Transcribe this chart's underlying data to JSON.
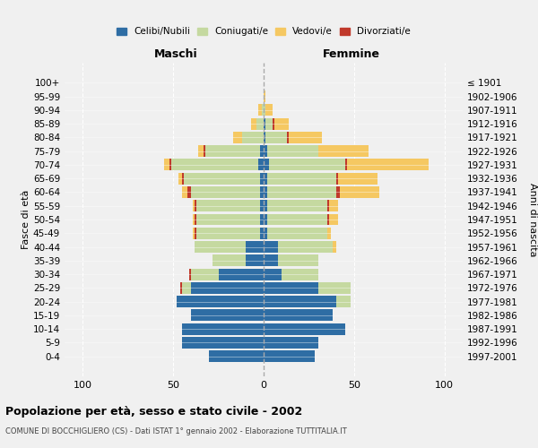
{
  "age_groups": [
    "0-4",
    "5-9",
    "10-14",
    "15-19",
    "20-24",
    "25-29",
    "30-34",
    "35-39",
    "40-44",
    "45-49",
    "50-54",
    "55-59",
    "60-64",
    "65-69",
    "70-74",
    "75-79",
    "80-84",
    "85-89",
    "90-94",
    "95-99",
    "100+"
  ],
  "birth_years": [
    "1997-2001",
    "1992-1996",
    "1987-1991",
    "1982-1986",
    "1977-1981",
    "1972-1976",
    "1967-1971",
    "1962-1966",
    "1957-1961",
    "1952-1956",
    "1947-1951",
    "1942-1946",
    "1937-1941",
    "1932-1936",
    "1927-1931",
    "1922-1926",
    "1917-1921",
    "1912-1916",
    "1907-1911",
    "1902-1906",
    "≤ 1901"
  ],
  "maschi": {
    "celibi": [
      30,
      45,
      45,
      40,
      48,
      40,
      25,
      10,
      10,
      2,
      2,
      2,
      2,
      2,
      3,
      2,
      0,
      0,
      0,
      0,
      0
    ],
    "coniugati": [
      0,
      0,
      0,
      0,
      0,
      5,
      15,
      18,
      28,
      35,
      35,
      35,
      38,
      42,
      48,
      30,
      12,
      4,
      1,
      0,
      0
    ],
    "vedovi": [
      0,
      0,
      0,
      0,
      0,
      0,
      0,
      0,
      0,
      1,
      1,
      1,
      3,
      2,
      3,
      3,
      5,
      3,
      2,
      0,
      0
    ],
    "divorziati": [
      0,
      0,
      0,
      0,
      0,
      1,
      1,
      0,
      0,
      1,
      1,
      1,
      2,
      1,
      1,
      1,
      0,
      0,
      0,
      0,
      0
    ]
  },
  "femmine": {
    "nubili": [
      28,
      30,
      45,
      38,
      40,
      30,
      10,
      8,
      8,
      2,
      2,
      2,
      2,
      2,
      3,
      2,
      1,
      1,
      0,
      0,
      0
    ],
    "coniugate": [
      0,
      0,
      0,
      0,
      8,
      18,
      20,
      22,
      30,
      33,
      33,
      33,
      38,
      38,
      42,
      28,
      12,
      4,
      1,
      0,
      0
    ],
    "vedove": [
      0,
      0,
      0,
      0,
      0,
      0,
      0,
      0,
      2,
      2,
      5,
      5,
      22,
      22,
      45,
      28,
      18,
      8,
      4,
      1,
      0
    ],
    "divorziate": [
      0,
      0,
      0,
      0,
      0,
      0,
      0,
      0,
      0,
      0,
      1,
      1,
      2,
      1,
      1,
      0,
      1,
      1,
      0,
      0,
      0
    ]
  },
  "colors": {
    "celibi_nubili": "#2E6DA4",
    "coniugati": "#C5D9A0",
    "vedovi": "#F5C862",
    "divorziati": "#C0392B"
  },
  "xlim": [
    -110,
    110
  ],
  "xticks": [
    -100,
    -50,
    0,
    50,
    100
  ],
  "xticklabels": [
    "100",
    "50",
    "0",
    "50",
    "100"
  ],
  "title": "Popolazione per età, sesso e stato civile - 2002",
  "subtitle": "COMUNE DI BOCCHIGLIERO (CS) - Dati ISTAT 1° gennaio 2002 - Elaborazione TUTTITALIA.IT",
  "ylabel": "Fasce di età",
  "right_ylabel": "Anni di nascita",
  "legend_labels": [
    "Celibi/Nubili",
    "Coniugati/e",
    "Vedovi/e",
    "Divorziati/e"
  ],
  "maschi_label": "Maschi",
  "femmine_label": "Femmine",
  "background_color": "#f0f0f0",
  "bar_height": 0.85
}
